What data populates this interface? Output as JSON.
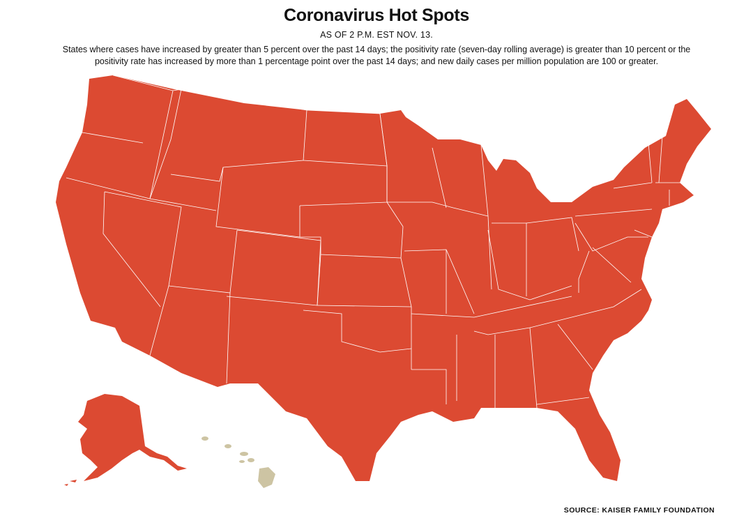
{
  "header": {
    "title": "Coronavirus Hot Spots",
    "as_of": "AS OF 2 P.M. EST NOV. 13.",
    "description": "States where cases have increased by greater than 5 percent over the past 14 days; the positivity rate (seven-day rolling average) is greater than 10 percent or the positivity rate has increased by more than 1 percentage point over the past 14 days; and new daily cases per million population are 100 or greater."
  },
  "legend_colors": {
    "hot_spot": "#dc4a32",
    "not_hot_spot": "#cdc4a3"
  },
  "footer": {
    "source": "SOURCE: KAISER FAMILY FOUNDATION"
  }
}
